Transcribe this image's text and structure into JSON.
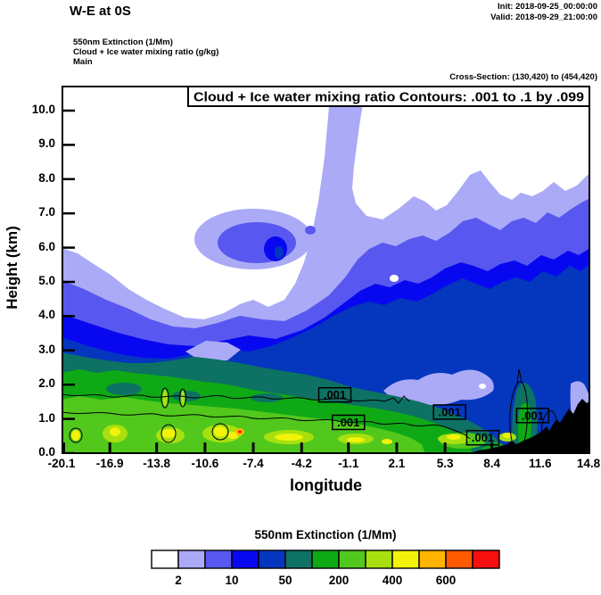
{
  "header": {
    "title": "W-E at 0S",
    "init_label": "Init: 2018-09-25_00:00:00",
    "valid_label": "Valid: 2018-09-29_21:00:00",
    "field_lines": [
      "550nm Extinction  (1/Mm)",
      "Cloud + Ice water mixing ratio  (g/kg)",
      "Main"
    ],
    "cross_section": "Cross-Section: (130,420) to (454,420)"
  },
  "chart_data": {
    "type": "filled_contour_cross_section",
    "title": "Cloud + Ice water mixing ratio Contours: .001 to .1 by .099",
    "xlabel": "longitude",
    "ylabel": "Height (km)",
    "xlim": [
      -20.1,
      14.8
    ],
    "ylim": [
      0,
      10
    ],
    "x_ticks": [
      "-20.1",
      "-16.9",
      "-13.8",
      "-10.6",
      "-7.4",
      "-4.2",
      "-1.1",
      "2.1",
      "5.3",
      "8.4",
      "11.6",
      "14.8"
    ],
    "y_ticks": [
      "0.0",
      "1.0",
      "2.0",
      "3.0",
      "4.0",
      "5.0",
      "6.0",
      "7.0",
      "8.0",
      "9.0",
      "10.0"
    ],
    "fill_variable": "550nm Extinction (1/Mm)",
    "contour_variable": "Cloud + Ice water mixing ratio (g/kg)",
    "contour_levels": [
      0.001,
      0.1
    ],
    "contour_labels": [
      {
        "text": ".001",
        "lon": -2.0,
        "km": 1.7
      },
      {
        "text": ".001",
        "lon": -1.1,
        "km": 0.9
      },
      {
        "text": ".001",
        "lon": 5.6,
        "km": 1.2
      },
      {
        "text": ".001",
        "lon": 7.8,
        "km": 0.45
      },
      {
        "text": ".001",
        "lon": 11.1,
        "km": 1.1
      }
    ],
    "colorbar": {
      "title": "550nm Extinction  (1/Mm)",
      "colors": [
        "#ffffff",
        "#aaaaf7",
        "#5858f0",
        "#0808f0",
        "#0536be",
        "#0d7263",
        "#0fa916",
        "#52c81d",
        "#a8e00f",
        "#f2f20a",
        "#ffb400",
        "#ff5a00",
        "#f50f0f"
      ],
      "tick_labels": [
        "2",
        "10",
        "50",
        "200",
        "400",
        "600"
      ],
      "tick_after_cell": [
        1,
        3,
        5,
        7,
        9,
        11
      ]
    }
  }
}
